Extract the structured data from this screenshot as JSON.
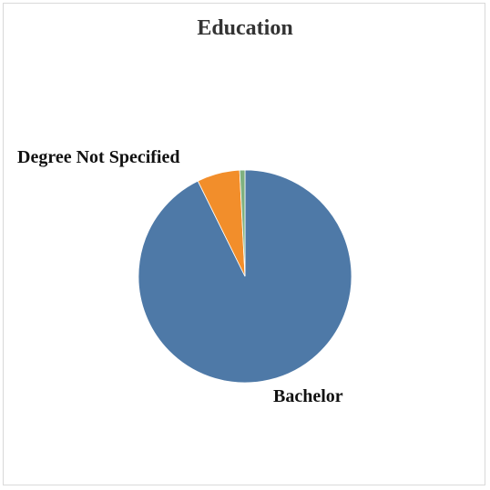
{
  "chart_data": {
    "type": "pie",
    "title": "Education",
    "slices": [
      {
        "label": "Bachelor",
        "value": 92.7,
        "color": "#4e79a7"
      },
      {
        "label": "Degree Not Specified",
        "value": 6.5,
        "color": "#f28e2b"
      },
      {
        "label": "",
        "value": 0.8,
        "color": "#7fb17f"
      }
    ]
  }
}
